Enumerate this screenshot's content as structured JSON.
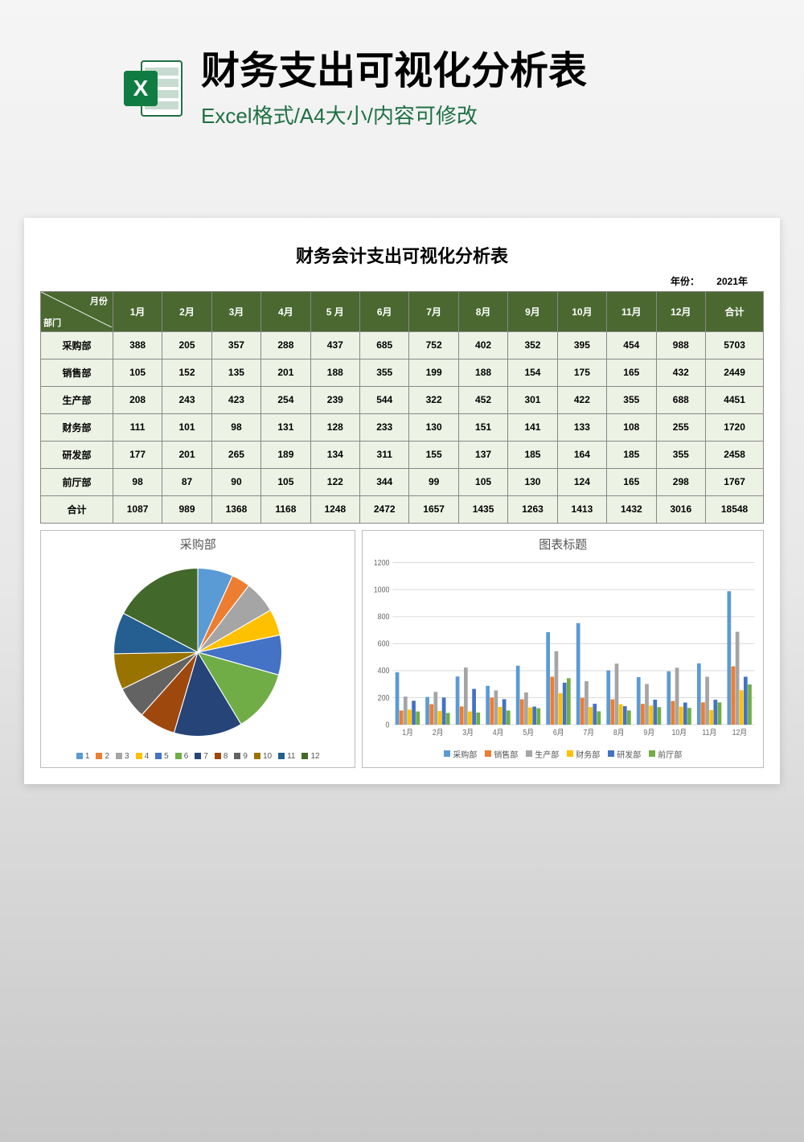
{
  "header": {
    "title": "财务支出可视化分析表",
    "subtitle": "Excel格式/A4大小/内容可修改"
  },
  "sheet": {
    "title": "财务会计支出可视化分析表",
    "year_label": "年份：",
    "year_value": "2021年",
    "corner_top": "月份",
    "corner_bottom": "部门",
    "months": [
      "1月",
      "2月",
      "3月",
      "4月",
      "5 月",
      "6月",
      "7月",
      "8月",
      "9月",
      "10月",
      "11月",
      "12月"
    ],
    "total_col": "合计",
    "total_row": "合计",
    "departments": [
      "采购部",
      "销售部",
      "生产部",
      "财务部",
      "研发部",
      "前厅部"
    ],
    "rows": [
      [
        388,
        205,
        357,
        288,
        437,
        685,
        752,
        402,
        352,
        395,
        454,
        988,
        5703
      ],
      [
        105,
        152,
        135,
        201,
        188,
        355,
        199,
        188,
        154,
        175,
        165,
        432,
        2449
      ],
      [
        208,
        243,
        423,
        254,
        239,
        544,
        322,
        452,
        301,
        422,
        355,
        688,
        4451
      ],
      [
        111,
        101,
        98,
        131,
        128,
        233,
        130,
        151,
        141,
        133,
        108,
        255,
        1720
      ],
      [
        177,
        201,
        265,
        189,
        134,
        311,
        155,
        137,
        185,
        164,
        185,
        355,
        2458
      ],
      [
        98,
        87,
        90,
        105,
        122,
        344,
        99,
        105,
        130,
        124,
        165,
        298,
        1767
      ]
    ],
    "totals": [
      1087,
      989,
      1368,
      1168,
      1248,
      2472,
      1657,
      1435,
      1263,
      1413,
      1432,
      3016,
      18548
    ]
  },
  "pie_chart": {
    "title": "采购部",
    "values": [
      388,
      205,
      357,
      288,
      437,
      685,
      752,
      402,
      352,
      395,
      454,
      988
    ],
    "colors": [
      "#5b9bd5",
      "#ed7d31",
      "#a5a5a5",
      "#ffc000",
      "#4472c4",
      "#70ad47",
      "#264478",
      "#9e480e",
      "#636363",
      "#997300",
      "#255e91",
      "#43682b"
    ],
    "legend_labels": [
      "1",
      "2",
      "3",
      "4",
      "5",
      "6",
      "7",
      "8",
      "9",
      "10",
      "11",
      "12"
    ]
  },
  "bar_chart": {
    "title": "图表标题",
    "categories": [
      "1月",
      "2月",
      "3月",
      "4月",
      "5月",
      "6月",
      "7月",
      "8月",
      "9月",
      "10月",
      "11月",
      "12月"
    ],
    "series": [
      {
        "name": "采购部",
        "color": "#5b9bd5",
        "values": [
          388,
          205,
          357,
          288,
          437,
          685,
          752,
          402,
          352,
          395,
          454,
          988
        ]
      },
      {
        "name": "销售部",
        "color": "#ed7d31",
        "values": [
          105,
          152,
          135,
          201,
          188,
          355,
          199,
          188,
          154,
          175,
          165,
          432
        ]
      },
      {
        "name": "生产部",
        "color": "#a5a5a5",
        "values": [
          208,
          243,
          423,
          254,
          239,
          544,
          322,
          452,
          301,
          422,
          355,
          688
        ]
      },
      {
        "name": "财务部",
        "color": "#ffc000",
        "values": [
          111,
          101,
          98,
          131,
          128,
          233,
          130,
          151,
          141,
          133,
          108,
          255
        ]
      },
      {
        "name": "研发部",
        "color": "#4472c4",
        "values": [
          177,
          201,
          265,
          189,
          134,
          311,
          155,
          137,
          185,
          164,
          185,
          355
        ]
      },
      {
        "name": "前厅部",
        "color": "#70ad47",
        "values": [
          98,
          87,
          90,
          105,
          122,
          344,
          99,
          105,
          130,
          124,
          165,
          298
        ]
      }
    ],
    "ymax": 1200,
    "ytick_step": 200,
    "background": "#ffffff",
    "grid_color": "#e0e0e0"
  }
}
